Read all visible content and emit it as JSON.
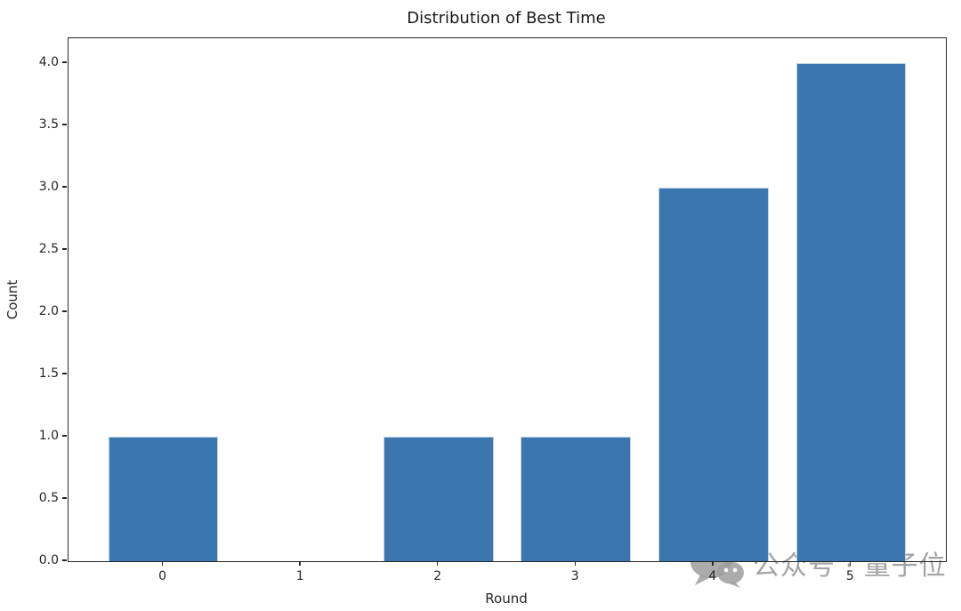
{
  "title": "Distribution of Best Time",
  "watermark": {
    "icon": "wechat-icon",
    "text": "公众号 · 量子位",
    "color": "#a3a3a3"
  },
  "chart_data": {
    "type": "bar",
    "title": "Distribution of Best Time",
    "xlabel": "Round",
    "ylabel": "Count",
    "categories": [
      "0",
      "1",
      "2",
      "3",
      "4",
      "5"
    ],
    "values": [
      1,
      0,
      1,
      1,
      3,
      4
    ],
    "bar_color": "#3b76af",
    "bar_width": 0.8,
    "xlim": [
      -0.69,
      5.69
    ],
    "ylim": [
      0,
      4.2
    ],
    "ytick_values": [
      0,
      0.5,
      1,
      1.5,
      2,
      2.5,
      3,
      3.5,
      4
    ],
    "ytick_labels": [
      "0.0",
      "0.5",
      "1.0",
      "1.5",
      "2.0",
      "2.5",
      "3.0",
      "3.5",
      "4.0"
    ],
    "grid": false,
    "legend": null
  }
}
